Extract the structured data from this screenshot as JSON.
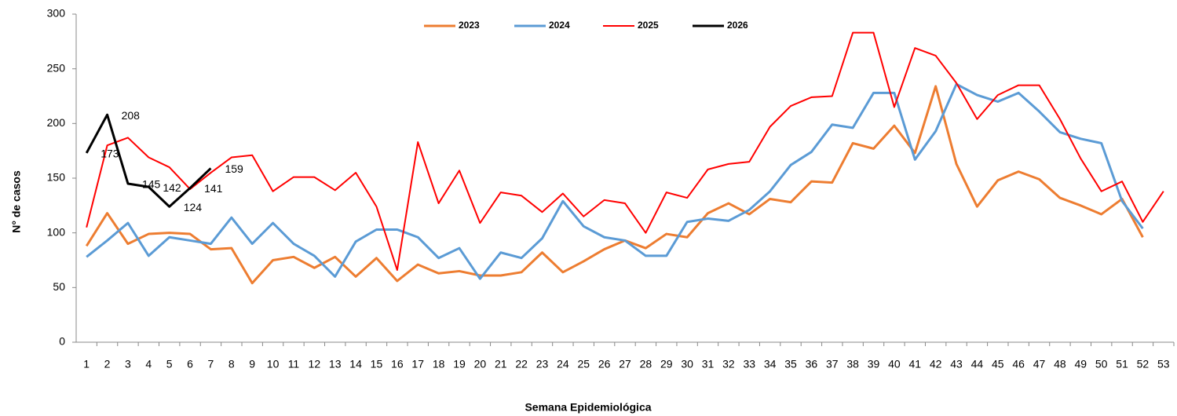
{
  "chart_data": {
    "type": "line",
    "y_label": "N° de casos",
    "x_label": "Semana Epidemiológica",
    "categories": [
      1,
      2,
      3,
      4,
      5,
      6,
      7,
      8,
      9,
      10,
      11,
      12,
      13,
      14,
      15,
      16,
      17,
      18,
      19,
      20,
      21,
      22,
      23,
      24,
      25,
      26,
      27,
      28,
      29,
      30,
      31,
      32,
      33,
      34,
      35,
      36,
      37,
      38,
      39,
      40,
      41,
      42,
      43,
      44,
      45,
      46,
      47,
      48,
      49,
      50,
      51,
      52,
      53
    ],
    "ylim": [
      0,
      300
    ],
    "yticks": [
      0,
      50,
      100,
      150,
      200,
      250,
      300
    ],
    "legend": "top",
    "series": [
      {
        "name": "2023",
        "color": "#ed7d31",
        "values": [
          88,
          118,
          90,
          99,
          100,
          99,
          85,
          86,
          54,
          75,
          78,
          68,
          78,
          60,
          77,
          56,
          71,
          63,
          65,
          61,
          61,
          64,
          82,
          64,
          74,
          85,
          93,
          86,
          99,
          96,
          118,
          127,
          117,
          131,
          128,
          147,
          146,
          182,
          177,
          198,
          173,
          234,
          163,
          124,
          148,
          156,
          149,
          132,
          125,
          117,
          131,
          96,
          null
        ]
      },
      {
        "name": "2024",
        "color": "#5b9bd5",
        "values": [
          78,
          93,
          109,
          79,
          96,
          93,
          90,
          114,
          90,
          109,
          90,
          79,
          60,
          92,
          103,
          103,
          96,
          77,
          86,
          58,
          82,
          77,
          95,
          129,
          106,
          96,
          93,
          79,
          79,
          110,
          113,
          111,
          121,
          138,
          162,
          174,
          199,
          196,
          228,
          228,
          167,
          193,
          236,
          226,
          220,
          228,
          211,
          192,
          186,
          182,
          129,
          104,
          null
        ]
      },
      {
        "name": "2025",
        "color": "#ff0000",
        "values": [
          105,
          180,
          187,
          169,
          160,
          140,
          155,
          169,
          171,
          138,
          151,
          151,
          139,
          155,
          124,
          66,
          183,
          127,
          157,
          109,
          137,
          134,
          119,
          136,
          115,
          130,
          127,
          100,
          137,
          132,
          158,
          163,
          165,
          197,
          216,
          224,
          225,
          283,
          283,
          215,
          269,
          262,
          237,
          204,
          226,
          235,
          235,
          204,
          168,
          138,
          147,
          110,
          138
        ]
      },
      {
        "name": "2026",
        "color": "#000000",
        "data_labels": true,
        "values": [
          173,
          208,
          145,
          142,
          124,
          141,
          159,
          null,
          null,
          null,
          null,
          null,
          null,
          null,
          null,
          null,
          null,
          null,
          null,
          null,
          null,
          null,
          null,
          null,
          null,
          null,
          null,
          null,
          null,
          null,
          null,
          null,
          null,
          null,
          null,
          null,
          null,
          null,
          null,
          null,
          null,
          null,
          null,
          null,
          null,
          null,
          null,
          null,
          null,
          null,
          null,
          null,
          null
        ]
      }
    ]
  }
}
